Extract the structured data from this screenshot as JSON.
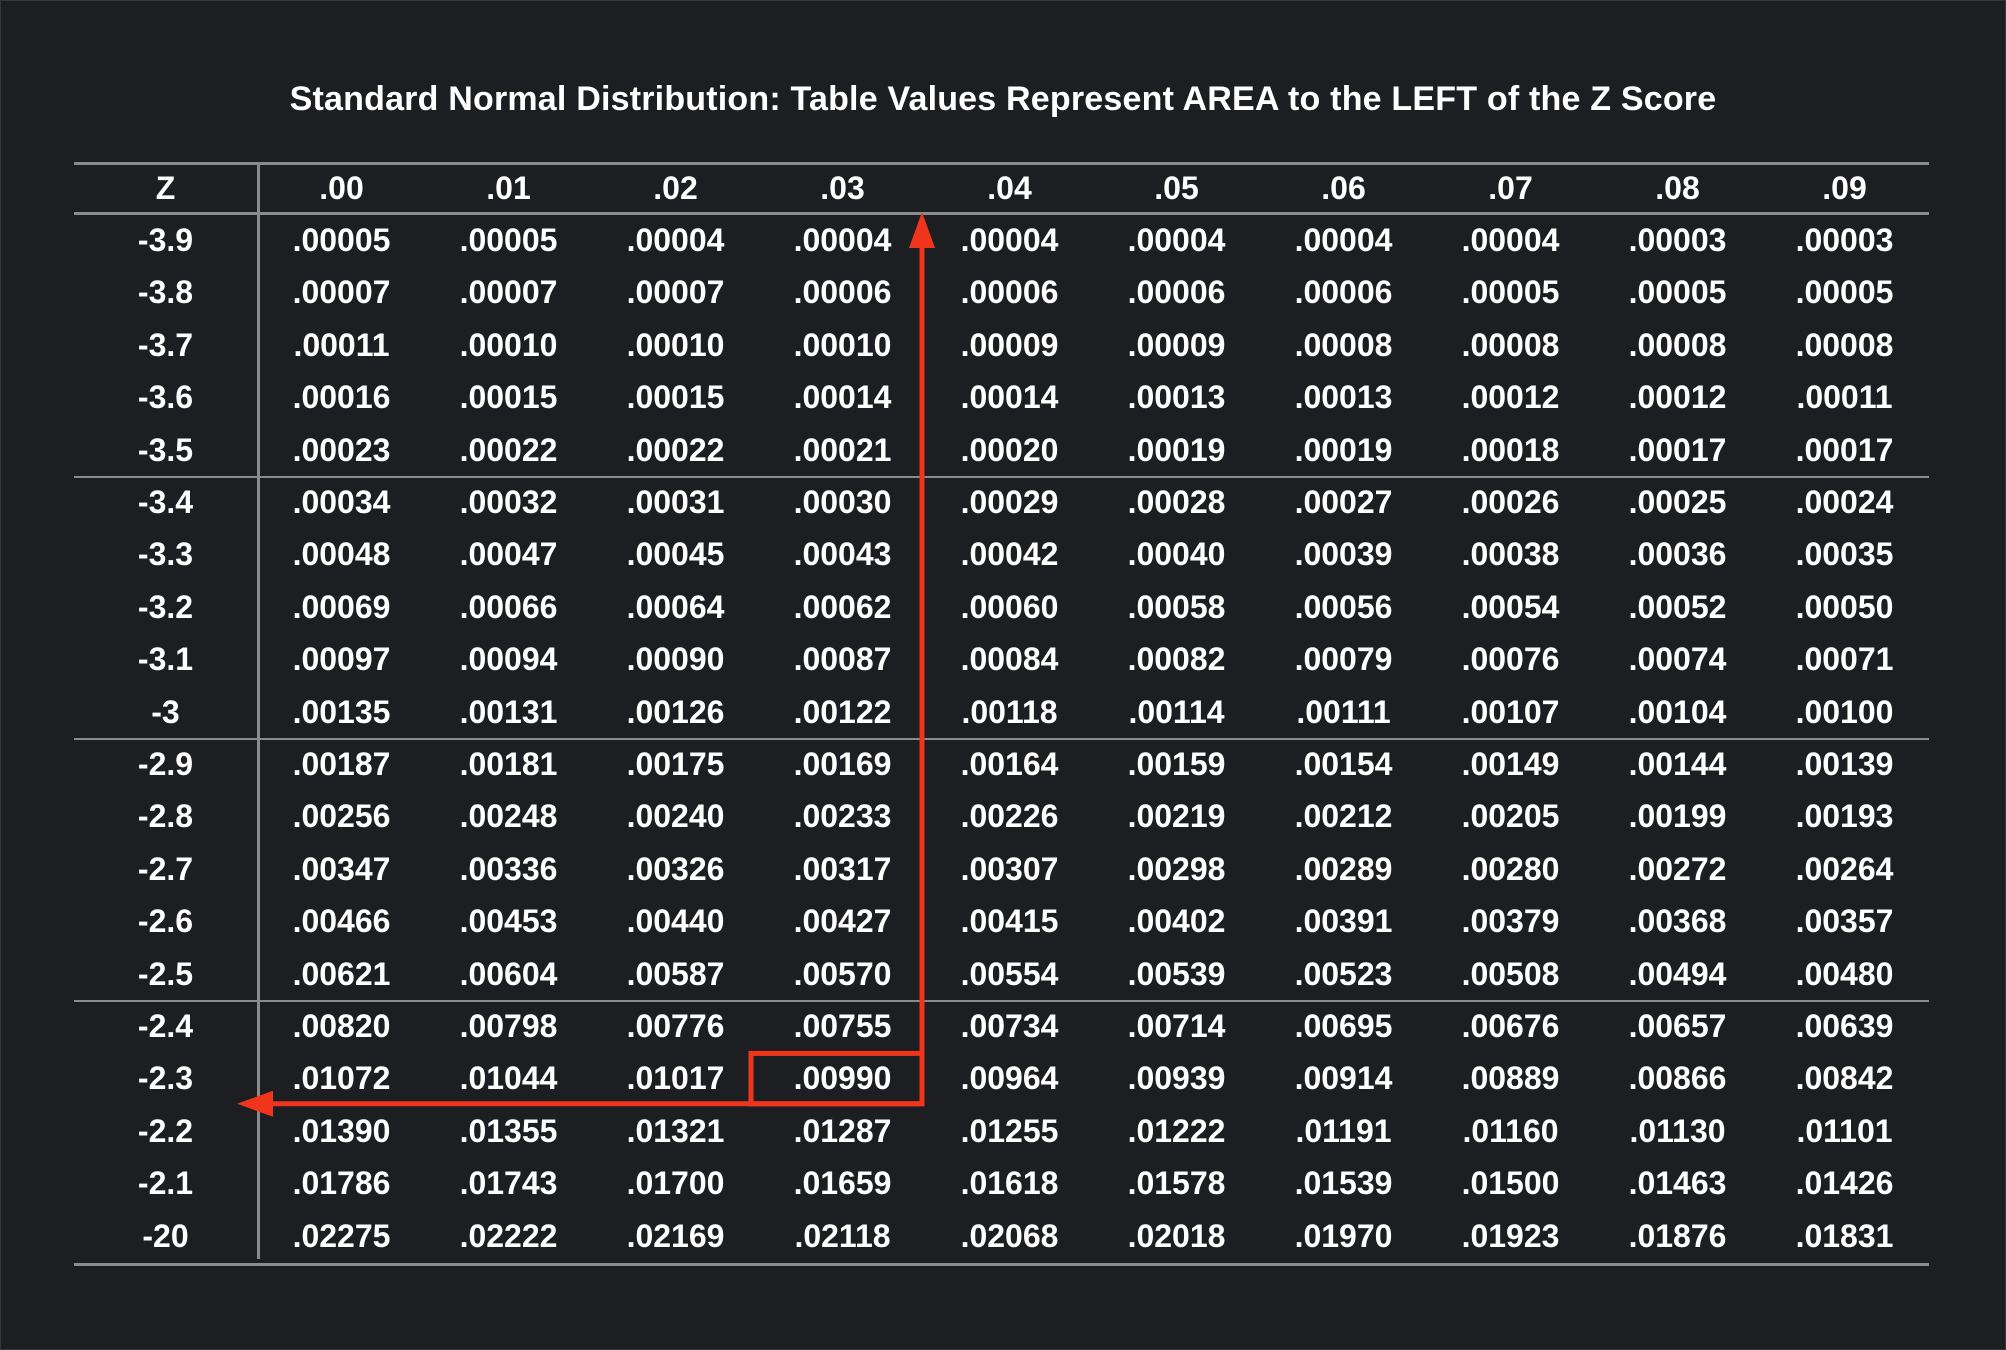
{
  "title": "Standard Normal Distribution: Table Values Represent AREA to the LEFT of the Z Score",
  "header": [
    "Z",
    ".00",
    ".01",
    ".02",
    ".03",
    ".04",
    ".05",
    ".06",
    ".07",
    ".08",
    ".09"
  ],
  "rows": [
    {
      "z": "-3.9",
      "values": [
        ".00005",
        ".00005",
        ".00004",
        ".00004",
        ".00004",
        ".00004",
        ".00004",
        ".00004",
        ".00003",
        ".00003"
      ]
    },
    {
      "z": "-3.8",
      "values": [
        ".00007",
        ".00007",
        ".00007",
        ".00006",
        ".00006",
        ".00006",
        ".00006",
        ".00005",
        ".00005",
        ".00005"
      ]
    },
    {
      "z": "-3.7",
      "values": [
        ".00011",
        ".00010",
        ".00010",
        ".00010",
        ".00009",
        ".00009",
        ".00008",
        ".00008",
        ".00008",
        ".00008"
      ]
    },
    {
      "z": "-3.6",
      "values": [
        ".00016",
        ".00015",
        ".00015",
        ".00014",
        ".00014",
        ".00013",
        ".00013",
        ".00012",
        ".00012",
        ".00011"
      ]
    },
    {
      "z": "-3.5",
      "values": [
        ".00023",
        ".00022",
        ".00022",
        ".00021",
        ".00020",
        ".00019",
        ".00019",
        ".00018",
        ".00017",
        ".00017"
      ]
    },
    {
      "z": "-3.4",
      "values": [
        ".00034",
        ".00032",
        ".00031",
        ".00030",
        ".00029",
        ".00028",
        ".00027",
        ".00026",
        ".00025",
        ".00024"
      ]
    },
    {
      "z": "-3.3",
      "values": [
        ".00048",
        ".00047",
        ".00045",
        ".00043",
        ".00042",
        ".00040",
        ".00039",
        ".00038",
        ".00036",
        ".00035"
      ]
    },
    {
      "z": "-3.2",
      "values": [
        ".00069",
        ".00066",
        ".00064",
        ".00062",
        ".00060",
        ".00058",
        ".00056",
        ".00054",
        ".00052",
        ".00050"
      ]
    },
    {
      "z": "-3.1",
      "values": [
        ".00097",
        ".00094",
        ".00090",
        ".00087",
        ".00084",
        ".00082",
        ".00079",
        ".00076",
        ".00074",
        ".00071"
      ]
    },
    {
      "z": "-3",
      "values": [
        ".00135",
        ".00131",
        ".00126",
        ".00122",
        ".00118",
        ".00114",
        ".00111",
        ".00107",
        ".00104",
        ".00100"
      ]
    },
    {
      "z": "-2.9",
      "values": [
        ".00187",
        ".00181",
        ".00175",
        ".00169",
        ".00164",
        ".00159",
        ".00154",
        ".00149",
        ".00144",
        ".00139"
      ]
    },
    {
      "z": "-2.8",
      "values": [
        ".00256",
        ".00248",
        ".00240",
        ".00233",
        ".00226",
        ".00219",
        ".00212",
        ".00205",
        ".00199",
        ".00193"
      ]
    },
    {
      "z": "-2.7",
      "values": [
        ".00347",
        ".00336",
        ".00326",
        ".00317",
        ".00307",
        ".00298",
        ".00289",
        ".00280",
        ".00272",
        ".00264"
      ]
    },
    {
      "z": "-2.6",
      "values": [
        ".00466",
        ".00453",
        ".00440",
        ".00427",
        ".00415",
        ".00402",
        ".00391",
        ".00379",
        ".00368",
        ".00357"
      ]
    },
    {
      "z": "-2.5",
      "values": [
        ".00621",
        ".00604",
        ".00587",
        ".00570",
        ".00554",
        ".00539",
        ".00523",
        ".00508",
        ".00494",
        ".00480"
      ]
    },
    {
      "z": "-2.4",
      "values": [
        ".00820",
        ".00798",
        ".00776",
        ".00755",
        ".00734",
        ".00714",
        ".00695",
        ".00676",
        ".00657",
        ".00639"
      ]
    },
    {
      "z": "-2.3",
      "values": [
        ".01072",
        ".01044",
        ".01017",
        ".00990",
        ".00964",
        ".00939",
        ".00914",
        ".00889",
        ".00866",
        ".00842"
      ]
    },
    {
      "z": "-2.2",
      "values": [
        ".01390",
        ".01355",
        ".01321",
        ".01287",
        ".01255",
        ".01222",
        ".01191",
        ".01160",
        ".01130",
        ".01101"
      ]
    },
    {
      "z": "-2.1",
      "values": [
        ".01786",
        ".01743",
        ".01700",
        ".01659",
        ".01618",
        ".01578",
        ".01539",
        ".01500",
        ".01463",
        ".01426"
      ]
    },
    {
      "z": "-20",
      "values": [
        ".02275",
        ".02222",
        ".02169",
        ".02118",
        ".02068",
        ".02018",
        ".01970",
        ".01923",
        ".01876",
        ".01831"
      ]
    }
  ],
  "highlight": {
    "row": "-2.3",
    "column": ".03",
    "value": ".00990"
  },
  "colors": {
    "background": "#1d1e21",
    "text": "#ffffff",
    "rule": "#8a8b8e",
    "highlight": "#f0351c"
  }
}
